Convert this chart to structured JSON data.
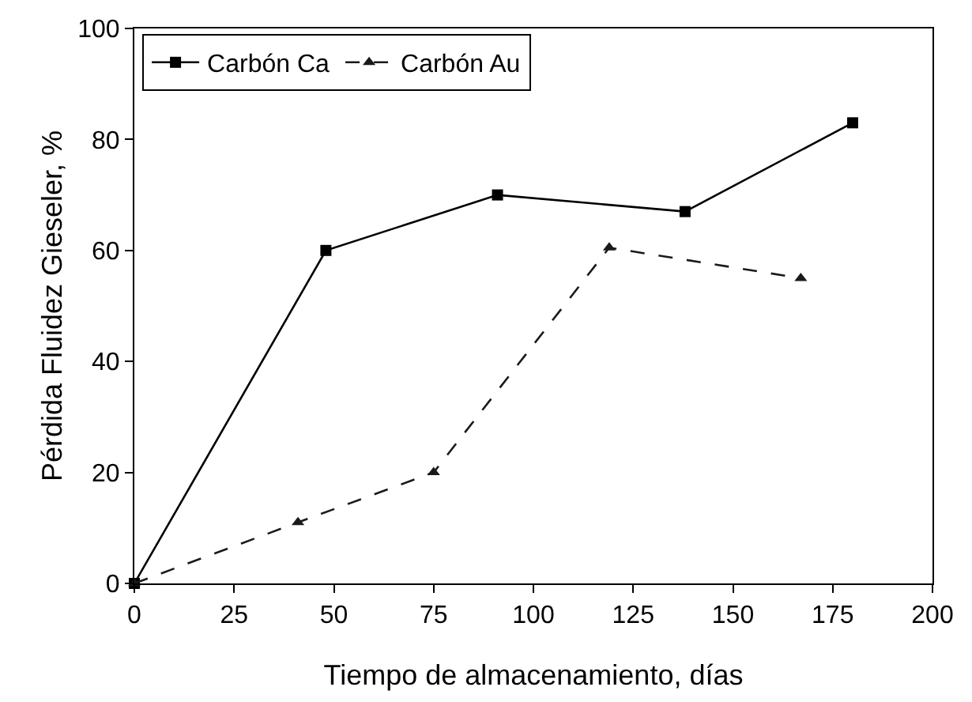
{
  "chart_data": {
    "type": "line",
    "xlabel": "Tiempo de almacenamiento, días",
    "ylabel": "Pérdida Fluidez Gieseler, %",
    "xlim": [
      0,
      200
    ],
    "xticks": [
      0,
      25,
      50,
      75,
      100,
      125,
      150,
      175,
      200
    ],
    "ylim": [
      0,
      100
    ],
    "yticks": [
      0,
      20,
      40,
      60,
      80,
      100
    ],
    "grid": false,
    "legend": "top left",
    "series": [
      {
        "name": "Carbón Ca",
        "color": "#000000",
        "marker": "square",
        "line_style": "solid",
        "x": [
          0,
          48,
          91,
          138,
          180
        ],
        "values": [
          0,
          60,
          70,
          67,
          83
        ]
      },
      {
        "name": "Carbón Au",
        "color": "#1a1a1a",
        "marker": "triangle",
        "line_style": "dashed",
        "x": [
          0,
          41,
          75,
          119,
          167
        ],
        "values": [
          0,
          11,
          20,
          60.5,
          55
        ]
      }
    ]
  }
}
